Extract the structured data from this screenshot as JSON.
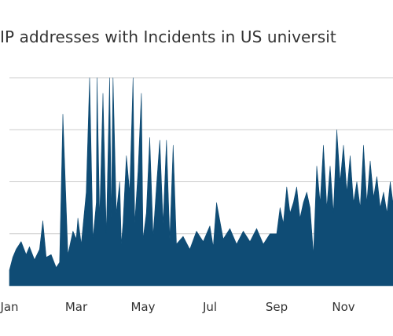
{
  "chart_data": {
    "type": "area",
    "title": "IP addresses with Incidents in US universit",
    "xlabel": "",
    "ylabel": "",
    "x_tick_labels": [
      "Jan",
      "Mar",
      "May",
      "Jul",
      "Sep",
      "Nov"
    ],
    "x_tick_months": [
      0,
      2,
      4,
      6,
      8,
      10
    ],
    "ylim": [
      0,
      4
    ],
    "y_gridlines": [
      1,
      2,
      3,
      4
    ],
    "grid": true,
    "legend": "none",
    "series": [
      {
        "color": "#0f4c75",
        "x_month": [
          0.0,
          0.1,
          0.2,
          0.35,
          0.5,
          0.6,
          0.75,
          0.9,
          1.0,
          1.1,
          1.25,
          1.4,
          1.5,
          1.6,
          1.75,
          1.9,
          2.0,
          2.05,
          2.15,
          2.3,
          2.4,
          2.5,
          2.6,
          2.62,
          2.7,
          2.8,
          2.9,
          3.0,
          3.05,
          3.1,
          3.2,
          3.3,
          3.35,
          3.4,
          3.5,
          3.6,
          3.7,
          3.75,
          3.85,
          3.95,
          4.0,
          4.1,
          4.2,
          4.3,
          4.4,
          4.5,
          4.6,
          4.7,
          4.8,
          4.9,
          5.0,
          5.2,
          5.4,
          5.6,
          5.8,
          6.0,
          6.1,
          6.2,
          6.4,
          6.6,
          6.8,
          7.0,
          7.2,
          7.4,
          7.6,
          7.8,
          8.0,
          8.1,
          8.2,
          8.3,
          8.4,
          8.5,
          8.6,
          8.7,
          8.8,
          8.9,
          9.0,
          9.1,
          9.2,
          9.3,
          9.4,
          9.5,
          9.6,
          9.7,
          9.8,
          9.9,
          10.0,
          10.1,
          10.2,
          10.3,
          10.4,
          10.5,
          10.6,
          10.7,
          10.8,
          10.9,
          11.0,
          11.1,
          11.2,
          11.3,
          11.4,
          11.5,
          11.6,
          11.7,
          11.8,
          11.9,
          11.95
        ],
        "y": [
          0.3,
          0.55,
          0.7,
          0.85,
          0.6,
          0.75,
          0.5,
          0.7,
          1.25,
          0.55,
          0.6,
          0.35,
          0.45,
          3.3,
          0.6,
          1.05,
          0.9,
          1.3,
          0.8,
          1.8,
          4.0,
          0.9,
          1.6,
          4.0,
          1.3,
          3.7,
          1.0,
          4.0,
          1.3,
          4.0,
          1.4,
          2.0,
          0.8,
          1.2,
          2.5,
          1.8,
          4.0,
          1.2,
          2.2,
          3.7,
          0.9,
          1.4,
          2.85,
          0.95,
          1.9,
          2.8,
          1.2,
          2.8,
          0.9,
          2.7,
          0.8,
          0.95,
          0.7,
          1.05,
          0.85,
          1.15,
          0.75,
          1.6,
          0.9,
          1.1,
          0.8,
          1.05,
          0.85,
          1.1,
          0.8,
          1.0,
          1.0,
          1.5,
          1.2,
          1.9,
          1.4,
          1.6,
          1.9,
          1.3,
          1.6,
          1.8,
          1.5,
          0.6,
          2.3,
          1.6,
          2.7,
          1.5,
          2.3,
          1.4,
          3.0,
          2.0,
          2.7,
          1.8,
          2.5,
          1.6,
          2.0,
          1.5,
          2.7,
          1.6,
          2.4,
          1.7,
          2.1,
          1.5,
          1.8,
          1.4,
          2.0,
          1.5,
          2.0,
          1.3,
          1.8,
          1.5,
          2.4
        ]
      }
    ]
  }
}
